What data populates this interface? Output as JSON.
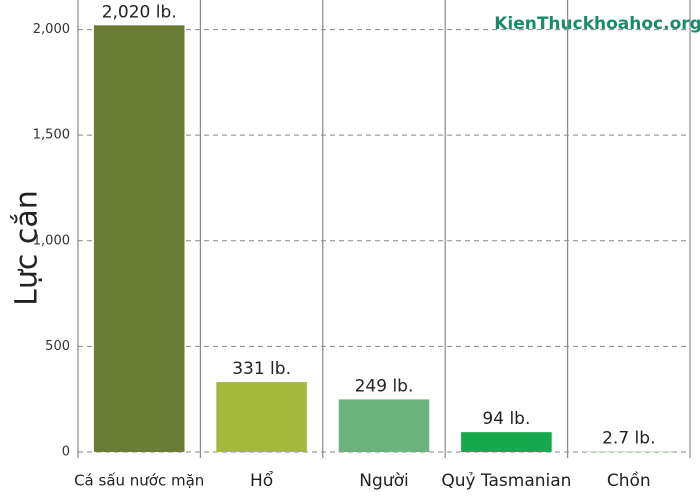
{
  "chart_data": {
    "type": "bar",
    "ylabel": "Lực cắn",
    "watermark": "KienThuckhoahoc.org",
    "categories": [
      "Cá sấu nước mặn",
      "Hổ",
      "Người",
      "Quỷ Tasmanian",
      "Chồn"
    ],
    "values": [
      2020,
      331,
      249,
      94,
      2.7
    ],
    "value_labels": [
      "2,020 lb.",
      "331 lb.",
      "249 lb.",
      "94 lb.",
      "2.7 lb."
    ],
    "colors": [
      "#6b7c34",
      "#a4b93c",
      "#6db37d",
      "#17a84d",
      "#a8d5a0"
    ],
    "ylim": [
      0,
      2140
    ],
    "yticks": [
      0,
      500,
      {
        "value": 1000,
        "label": "1,000"
      },
      {
        "value": 1500,
        "label": "1,500"
      },
      {
        "value": 2000,
        "label": "2,000"
      }
    ],
    "grid": true
  }
}
